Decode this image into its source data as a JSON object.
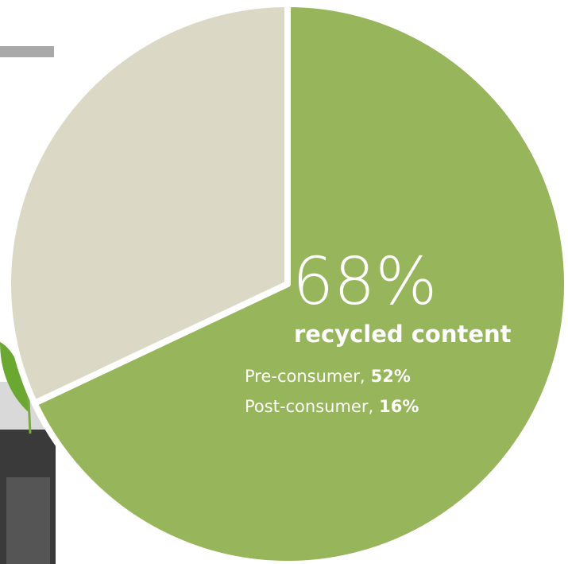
{
  "chart_data": {
    "type": "pie",
    "categories": [
      "recycled content",
      null
    ],
    "values": [
      68,
      32
    ],
    "value_labels": [
      "68%",
      null
    ],
    "colors": [
      "#97b55a",
      "#dcd8c6"
    ],
    "breakdown": [
      {
        "name": "Pre-consumer,",
        "value": 52,
        "label": "52%"
      },
      {
        "name": "Post-consumer,",
        "value": 16,
        "label": "16%"
      }
    ]
  }
}
